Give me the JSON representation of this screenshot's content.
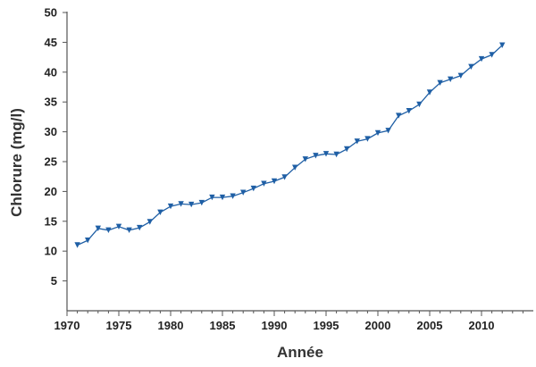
{
  "chart_data": {
    "type": "line",
    "title": "",
    "xlabel": "Année",
    "ylabel": "Chlorure (mg/l)",
    "xlim": [
      1970,
      2015
    ],
    "ylim": [
      0,
      50
    ],
    "x_ticks": [
      "1970",
      "1975",
      "1980",
      "1985",
      "1990",
      "1995",
      "2000",
      "2005",
      "2010"
    ],
    "y_ticks": [
      "5",
      "10",
      "15",
      "20",
      "25",
      "30",
      "35",
      "40",
      "45",
      "50"
    ],
    "grid": false,
    "legend": "none",
    "marker": "triangle-down",
    "color": "#1f5fa5",
    "series": [
      {
        "x": [
          1971,
          1972,
          1973,
          1974,
          1975,
          1976,
          1977,
          1978,
          1979,
          1980,
          1981,
          1982,
          1983,
          1984,
          1985,
          1986,
          1987,
          1988,
          1989,
          1990,
          1991,
          1992,
          1993,
          1994,
          1995,
          1996,
          1997,
          1998,
          1999,
          2000,
          2001,
          2002,
          2003,
          2004,
          2005,
          2006,
          2007,
          2008,
          2009,
          2010,
          2011,
          2012
        ],
        "y": [
          11.0,
          11.8,
          13.8,
          13.5,
          14.1,
          13.5,
          13.9,
          14.9,
          16.5,
          17.5,
          17.9,
          17.8,
          18.1,
          19.0,
          19.0,
          19.2,
          19.8,
          20.5,
          21.3,
          21.7,
          22.4,
          24.0,
          25.4,
          26.0,
          26.3,
          26.2,
          27.1,
          28.4,
          28.8,
          29.8,
          30.2,
          32.7,
          33.5,
          34.6,
          36.6,
          38.2,
          38.8,
          39.4,
          40.9,
          42.2,
          42.9,
          44.5
        ]
      }
    ]
  }
}
